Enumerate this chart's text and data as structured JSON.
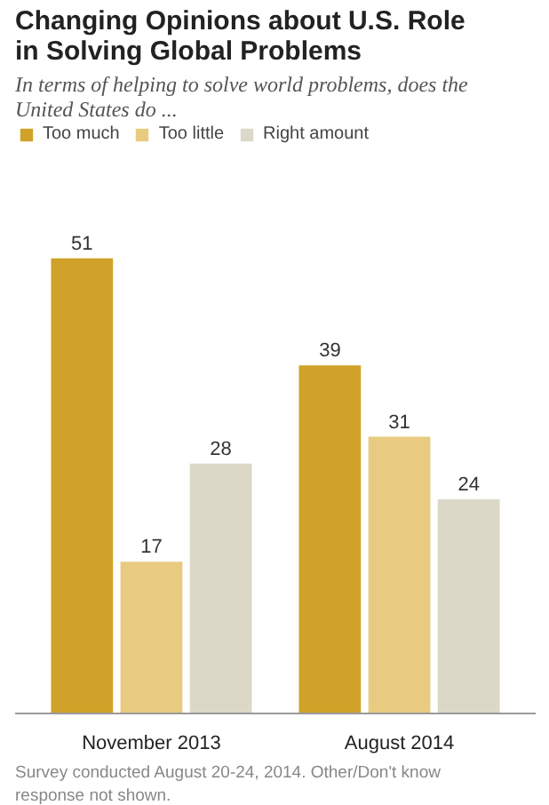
{
  "chart_data": {
    "type": "bar",
    "title": "Changing Opinions about U.S. Role in Solving Global Problems",
    "subtitle": "In terms of helping to solve world problems, does the United States do ...",
    "categories": [
      "November 2013",
      "August 2014"
    ],
    "series": [
      {
        "name": "Too much",
        "color": "#d1a22a",
        "values": [
          51,
          39
        ]
      },
      {
        "name": "Too little",
        "color": "#e8cb80",
        "values": [
          17,
          31
        ]
      },
      {
        "name": "Right amount",
        "color": "#dcd8c8",
        "values": [
          28,
          24
        ]
      }
    ],
    "data_labels": true,
    "legend": "top left",
    "grid": false,
    "annotations": [
      "Survey conducted August 20-24, 2014. Other/Don't know response not shown."
    ]
  }
}
